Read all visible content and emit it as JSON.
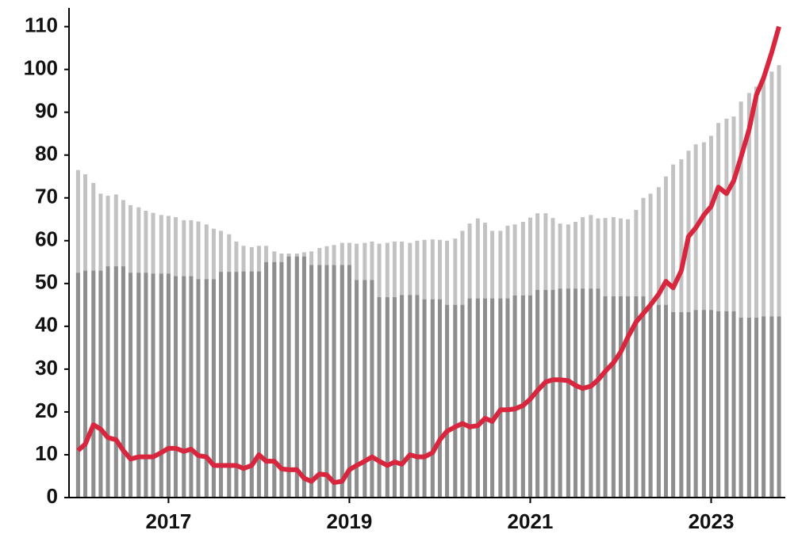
{
  "chart_data": {
    "type": "bar-line",
    "x": [
      2016.0,
      2016.08,
      2016.17,
      2016.25,
      2016.33,
      2016.42,
      2016.5,
      2016.58,
      2016.67,
      2016.75,
      2016.83,
      2016.92,
      2017.0,
      2017.08,
      2017.17,
      2017.25,
      2017.33,
      2017.42,
      2017.5,
      2017.58,
      2017.67,
      2017.75,
      2017.83,
      2017.92,
      2018.0,
      2018.08,
      2018.17,
      2018.25,
      2018.33,
      2018.42,
      2018.5,
      2018.58,
      2018.67,
      2018.75,
      2018.83,
      2018.92,
      2019.0,
      2019.08,
      2019.17,
      2019.25,
      2019.33,
      2019.42,
      2019.5,
      2019.58,
      2019.67,
      2019.75,
      2019.83,
      2019.92,
      2020.0,
      2020.08,
      2020.17,
      2020.25,
      2020.33,
      2020.42,
      2020.5,
      2020.58,
      2020.67,
      2020.75,
      2020.83,
      2020.92,
      2021.0,
      2021.08,
      2021.17,
      2021.25,
      2021.33,
      2021.42,
      2021.5,
      2021.58,
      2021.67,
      2021.75,
      2021.83,
      2021.92,
      2022.0,
      2022.08,
      2022.17,
      2022.25,
      2022.33,
      2022.42,
      2022.5,
      2022.58,
      2022.67,
      2022.75,
      2022.83,
      2022.92,
      2023.0,
      2023.08,
      2023.17,
      2023.25,
      2023.33,
      2023.42,
      2023.5,
      2023.58,
      2023.67,
      2023.75
    ],
    "series": [
      {
        "kind": "bar",
        "color": "#c2c2c2",
        "values": [
          76.5,
          75.5,
          73.5,
          71,
          70.5,
          70.8,
          69.5,
          68.3,
          67.8,
          67,
          66.5,
          66,
          65.8,
          65.5,
          64.8,
          64.8,
          64.5,
          63.8,
          62.8,
          62.3,
          61.5,
          59.8,
          58.8,
          58.5,
          58.8,
          58.8,
          57.5,
          57,
          57,
          57,
          57.3,
          57.5,
          58.3,
          58.7,
          59,
          59.5,
          59.5,
          59.3,
          59.5,
          59.8,
          59.3,
          59.5,
          59.8,
          59.8,
          59.5,
          60,
          60.2,
          60.3,
          60.2,
          60,
          60.5,
          62.3,
          64,
          65.2,
          64.2,
          62.3,
          62.3,
          63.5,
          63.8,
          64.4,
          65.4,
          66.4,
          66.4,
          65.3,
          64,
          63.8,
          64.4,
          65.5,
          66,
          65.2,
          65.3,
          65.5,
          65.2,
          65,
          67.2,
          70,
          71,
          72.5,
          75,
          77.8,
          79,
          81,
          82.5,
          83,
          84.5,
          87.5,
          88.5,
          89,
          92.5,
          94.5,
          96,
          98.5,
          99.5,
          101
        ]
      },
      {
        "kind": "bar",
        "color": "#8e8e8e",
        "values": [
          52.5,
          53,
          53,
          53,
          54,
          54,
          54,
          52.5,
          52.5,
          52.5,
          52.3,
          52.3,
          52.3,
          51.7,
          51.7,
          51.7,
          51,
          51,
          51,
          52.7,
          52.7,
          52.7,
          52.8,
          52.8,
          52.8,
          55,
          55,
          55,
          56.3,
          56.3,
          56.3,
          54.3,
          54.3,
          54.3,
          54.3,
          54.3,
          54.3,
          50.8,
          50.8,
          50.8,
          46.8,
          46.8,
          46.8,
          47.3,
          47.3,
          47.3,
          46.3,
          46.3,
          46.3,
          45,
          45,
          45,
          46.5,
          46.5,
          46.5,
          46.5,
          46.5,
          46.5,
          47.2,
          47.2,
          47.2,
          48.5,
          48.5,
          48.5,
          48.8,
          48.8,
          48.8,
          48.8,
          48.8,
          48.8,
          47,
          47,
          47,
          47,
          47,
          47,
          45,
          45,
          45,
          43.3,
          43.3,
          43.3,
          43.8,
          43.8,
          43.8,
          43.5,
          43.5,
          43.5,
          42,
          42,
          42,
          42.3,
          42.3,
          42.3
        ]
      },
      {
        "kind": "line",
        "color": "#d7263d",
        "values": [
          11,
          12.5,
          17,
          16,
          14,
          13.5,
          11,
          9,
          9.5,
          9.5,
          9.5,
          10.5,
          11.5,
          11.5,
          10.8,
          11.3,
          9.8,
          9.5,
          7.5,
          7.5,
          7.5,
          7.5,
          6.8,
          7.5,
          10,
          8.5,
          8.5,
          6.7,
          6.5,
          6.5,
          4.5,
          3.8,
          5.5,
          5.3,
          3.5,
          3.8,
          6.5,
          7.5,
          8.5,
          9.5,
          8.5,
          7.5,
          8.3,
          7.8,
          10,
          9.5,
          9.5,
          10.5,
          13.5,
          15.5,
          16.5,
          17.3,
          16.5,
          16.8,
          18.5,
          17.8,
          20.5,
          20.5,
          20.7,
          21.5,
          23,
          25,
          27,
          27.5,
          27.5,
          27.3,
          26.2,
          25.5,
          26,
          27.5,
          29.5,
          31.5,
          34,
          37.5,
          41,
          43,
          45,
          47.5,
          50.5,
          49,
          53,
          61,
          63,
          66,
          68,
          72.5,
          71,
          74,
          79.5,
          86,
          94,
          98,
          104,
          110
        ]
      }
    ],
    "xlim": [
      2015.9,
      2023.82
    ],
    "xticks": [
      2017,
      2019,
      2021,
      2023
    ],
    "ylim": [
      0,
      114
    ],
    "yticks": [
      0,
      10,
      20,
      30,
      40,
      50,
      60,
      70,
      80,
      90,
      100,
      110
    ]
  }
}
